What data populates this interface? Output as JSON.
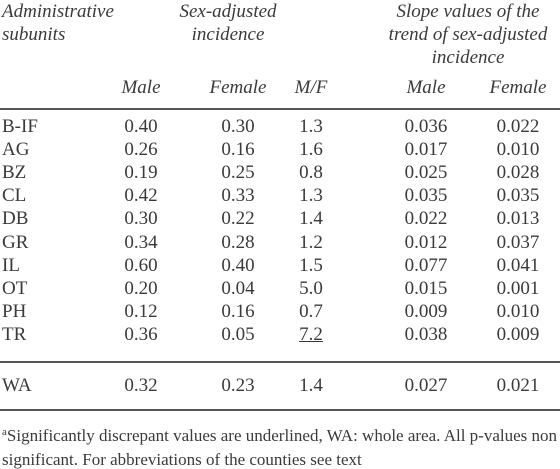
{
  "header": {
    "subunits": [
      "Administrative",
      "subunits"
    ],
    "incidence": [
      "Sex-adjusted",
      "incidence"
    ],
    "slope": [
      "Slope values of the",
      "trend of sex-adjusted",
      "incidence"
    ],
    "subcolumns": [
      "Male",
      "Female",
      "M/F",
      "Male",
      "Female"
    ]
  },
  "rows": [
    [
      "B-IF",
      "0.40",
      "0.30",
      "1.3",
      "0.036",
      "0.022"
    ],
    [
      "AG",
      "0.26",
      "0.16",
      "1.6",
      "0.017",
      "0.010"
    ],
    [
      "BZ",
      "0.19",
      "0.25",
      "0.8",
      "0.025",
      "0.028"
    ],
    [
      "CL",
      "0.42",
      "0.33",
      "1.3",
      "0.035",
      "0.035"
    ],
    [
      "DB",
      "0.30",
      "0.22",
      "1.4",
      "0.022",
      "0.013"
    ],
    [
      "GR",
      "0.34",
      "0.28",
      "1.2",
      "0.012",
      "0.037"
    ],
    [
      "IL",
      "0.60",
      "0.40",
      "1.5",
      "0.077",
      "0.041"
    ],
    [
      "OT",
      "0.20",
      "0.04",
      "5.0",
      "0.015",
      "0.001"
    ],
    [
      "PH",
      "0.12",
      "0.16",
      "0.7",
      "0.009",
      "0.010"
    ],
    [
      "TR",
      "0.36",
      "0.05",
      {
        "text": "7.2",
        "underline": true
      },
      "0.038",
      "0.009"
    ]
  ],
  "total": [
    "WA",
    "0.32",
    "0.23",
    "1.4",
    "0.027",
    "0.021"
  ],
  "footnote": {
    "marker": "a",
    "text": "Significantly discrepant values are underlined, WA: whole area. All p-values non significant. For abbreviations of the counties see text"
  }
}
